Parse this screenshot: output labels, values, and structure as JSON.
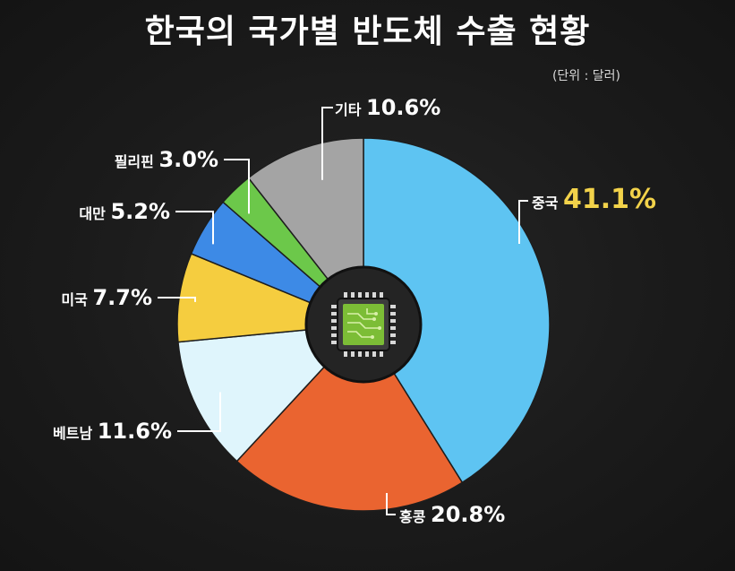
{
  "title": "한국의 국가별 반도체 수출 현황",
  "unit_note": "(단위 : 달러)",
  "chart_data": {
    "type": "pie",
    "title": "한국의 국가별 반도체 수출 현황",
    "unit": "(단위 : 달러)",
    "slices": [
      {
        "name": "중국",
        "value": 41.1,
        "label": "41.1%",
        "color": "#5ec4f2",
        "label_color": "#f2d24a"
      },
      {
        "name": "홍콩",
        "value": 20.8,
        "label": "20.8%",
        "color": "#ea6430",
        "label_color": "#ffffff"
      },
      {
        "name": "베트남",
        "value": 11.6,
        "label": "11.6%",
        "color": "#dff5fc",
        "label_color": "#ffffff"
      },
      {
        "name": "미국",
        "value": 7.7,
        "label": "7.7%",
        "color": "#f5cd3f",
        "label_color": "#ffffff"
      },
      {
        "name": "대만",
        "value": 5.2,
        "label": "5.2%",
        "color": "#3d8ae6",
        "label_color": "#ffffff"
      },
      {
        "name": "필리핀",
        "value": 3.0,
        "label": "3.0%",
        "color": "#6cc84a",
        "label_color": "#ffffff"
      },
      {
        "name": "기타",
        "value": 10.6,
        "label": "10.6%",
        "color": "#a4a4a4",
        "label_color": "#ffffff"
      }
    ],
    "center_icon": "microchip-icon",
    "legend": "none"
  }
}
